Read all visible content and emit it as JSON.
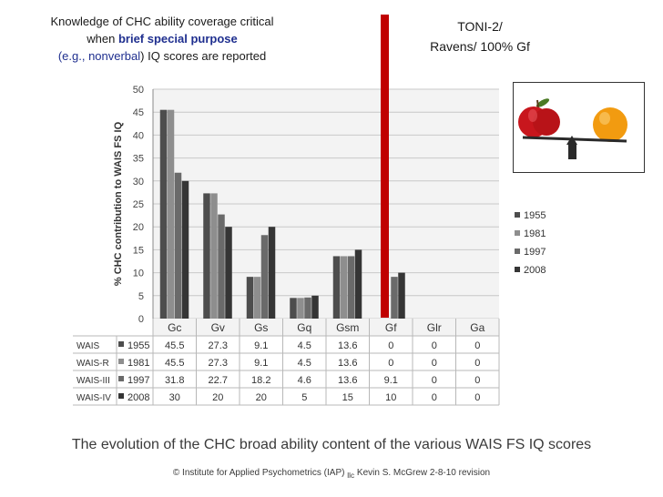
{
  "note": {
    "line1": "Knowledge of CHC ability coverage critical",
    "line2_pre": "when ",
    "line2_emph": "brief special purpose",
    "line3_open": "(e.g., ",
    "line3_blue": "nonverbal",
    "line3_post": ") IQ scores are reported"
  },
  "toni": {
    "line1": "TONI-2/",
    "line2": "Ravens/ 100% Gf"
  },
  "chart_data": {
    "type": "bar",
    "ylabel": "% CHC contribution to WAIS FS IQ",
    "ylim": [
      0,
      50
    ],
    "yticks": [
      0,
      5,
      10,
      15,
      20,
      25,
      30,
      35,
      40,
      45,
      50
    ],
    "categories": [
      "Gc",
      "Gv",
      "Gs",
      "Gq",
      "Gsm",
      "Gf",
      "Glr",
      "Ga"
    ],
    "series": [
      {
        "name": "1955",
        "test": "WAIS",
        "color": "#4d4d4d",
        "values": [
          45.5,
          27.3,
          9.1,
          4.5,
          13.6,
          0,
          0,
          0
        ]
      },
      {
        "name": "1981",
        "test": "WAIS-R",
        "color": "#8e8e8e",
        "values": [
          45.5,
          27.3,
          9.1,
          4.5,
          13.6,
          0,
          0,
          0
        ]
      },
      {
        "name": "1997",
        "test": "WAIS-III",
        "color": "#6a6a6a",
        "values": [
          31.8,
          22.7,
          18.2,
          4.6,
          13.6,
          9.1,
          0,
          0
        ]
      },
      {
        "name": "2008",
        "test": "WAIS-IV",
        "color": "#353535",
        "values": [
          30,
          20,
          20,
          5,
          15,
          10,
          0,
          0
        ]
      }
    ],
    "table": {
      "rows": [
        {
          "test": "WAIS",
          "year": "1955",
          "cells": [
            "45.5",
            "27.3",
            "9.1",
            "4.5",
            "13.6",
            "0",
            "0",
            "0"
          ]
        },
        {
          "test": "WAIS-R",
          "year": "1981",
          "cells": [
            "45.5",
            "27.3",
            "9.1",
            "4.5",
            "13.6",
            "0",
            "0",
            "0"
          ]
        },
        {
          "test": "WAIS-III",
          "year": "1997",
          "cells": [
            "31.8",
            "22.7",
            "18.2",
            "4.6",
            "13.6",
            "9.1",
            "0",
            "0"
          ]
        },
        {
          "test": "WAIS-IV",
          "year": "2008",
          "cells": [
            "30",
            "20",
            "20",
            "5",
            "15",
            "10",
            "0",
            "0"
          ]
        }
      ]
    },
    "highlight_color": "#c00000",
    "grid": true,
    "legend_position": "right"
  },
  "caption": "The evolution of the CHC broad ability content of the various WAIS FS IQ scores",
  "copyright": "© Institute for Applied Psychometrics (IAP)",
  "copyright_llc": "llc",
  "copyright_tail": " Kevin S. McGrew 2-8-10 revision",
  "colors": {
    "apple": "#c8161d",
    "orange": "#f29b10",
    "fulcrum": "#2a2a2a"
  },
  "icons": {
    "scale": "balance-scale-apple-orange-icon"
  }
}
